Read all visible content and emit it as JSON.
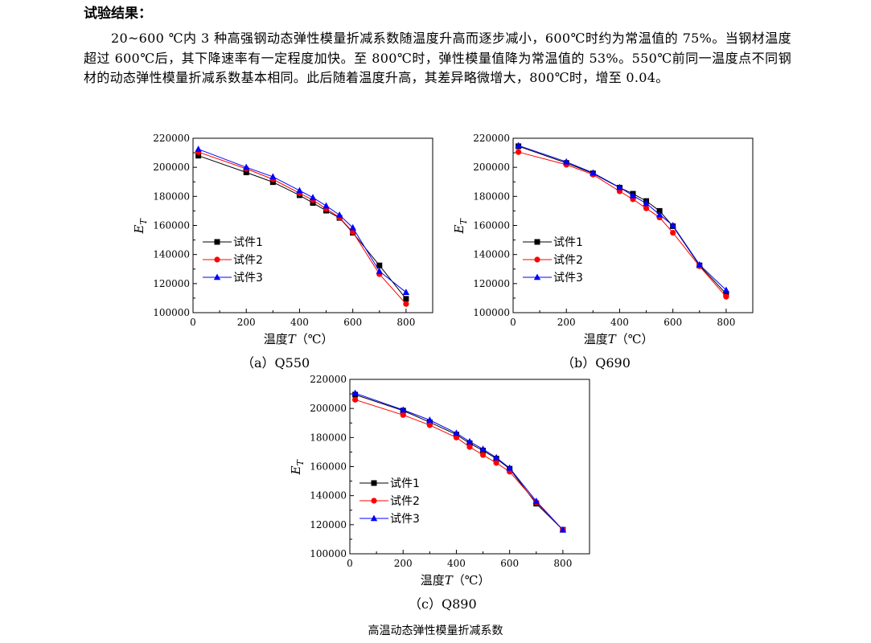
{
  "heading": "试验结果：",
  "paragraph": "20~600 ℃内 3 种高强钢动态弹性模量折减系数随温度升高而逐步减小，600℃时约为常温值的 75%。当钢材温度超过 600℃后，其下降速率有一定程度加快。至 800℃时，弹性模量值降为常温值的 53%。550℃前同一温度点不同钢材的动态弹性模量折减系数基本相同。此后随着温度升高，其差异略微增大，800℃时，增至 0.04。",
  "figure_caption": "高温动态弹性模量折减系数",
  "colors": {
    "s1": "#000000",
    "s2": "#ff0000",
    "s3": "#0000ff"
  },
  "chart_data": [
    {
      "type": "line",
      "caption": "（a）Q550",
      "xlabel_text": "温度",
      "xlabel_var": "T",
      "xlabel_unit": "（℃）",
      "ylabel_main": "E",
      "ylabel_sub": "T",
      "xlim": [
        0,
        900
      ],
      "ylim": [
        100000,
        220000
      ],
      "xticks": [
        0,
        200,
        400,
        600,
        800
      ],
      "yticks": [
        100000,
        120000,
        140000,
        160000,
        180000,
        200000,
        220000
      ],
      "legend": "left-middle",
      "series": [
        {
          "name": "试件1",
          "marker": "square",
          "color": "#000000",
          "x": [
            20,
            200,
            300,
            400,
            450,
            500,
            550,
            600,
            700,
            800
          ],
          "y": [
            208000,
            196500,
            189800,
            180800,
            175500,
            170200,
            165200,
            155000,
            132500,
            109500
          ]
        },
        {
          "name": "试件2",
          "marker": "circle",
          "color": "#ff0000",
          "x": [
            20,
            200,
            300,
            400,
            450,
            500,
            550,
            600,
            700,
            800
          ],
          "y": [
            210500,
            199000,
            191800,
            182200,
            177500,
            171500,
            165500,
            155500,
            126500,
            106000
          ]
        },
        {
          "name": "试件3",
          "marker": "triangle",
          "color": "#0000ff",
          "x": [
            20,
            200,
            300,
            400,
            450,
            500,
            550,
            600,
            700,
            800
          ],
          "y": [
            212500,
            200000,
            193500,
            184000,
            179200,
            173500,
            167200,
            158500,
            128500,
            114000
          ]
        }
      ]
    },
    {
      "type": "line",
      "caption": "（b）Q690",
      "xlabel_text": "温度",
      "xlabel_var": "T",
      "xlabel_unit": "（℃）",
      "ylabel_main": "E",
      "ylabel_sub": "T",
      "xlim": [
        0,
        900
      ],
      "ylim": [
        100000,
        220000
      ],
      "xticks": [
        0,
        200,
        400,
        600,
        800
      ],
      "yticks": [
        100000,
        120000,
        140000,
        160000,
        180000,
        200000,
        220000
      ],
      "legend": "left-middle",
      "series": [
        {
          "name": "试件1",
          "marker": "square",
          "color": "#000000",
          "x": [
            20,
            200,
            300,
            400,
            450,
            500,
            550,
            600,
            700,
            800
          ],
          "y": [
            214500,
            203000,
            195800,
            186000,
            181800,
            176800,
            170000,
            159500,
            132500,
            113000
          ]
        },
        {
          "name": "试件2",
          "marker": "circle",
          "color": "#ff0000",
          "x": [
            20,
            200,
            300,
            400,
            450,
            500,
            550,
            600,
            700,
            800
          ],
          "y": [
            210500,
            201800,
            195000,
            183500,
            178000,
            171800,
            165500,
            155000,
            132000,
            111000
          ]
        },
        {
          "name": "试件3",
          "marker": "triangle",
          "color": "#0000ff",
          "x": [
            20,
            200,
            300,
            400,
            450,
            500,
            550,
            600,
            700,
            800
          ],
          "y": [
            215000,
            203800,
            196200,
            186200,
            180500,
            175200,
            167500,
            160000,
            133000,
            115500
          ]
        }
      ]
    },
    {
      "type": "line",
      "caption": "（c）Q890",
      "xlabel_text": "温度",
      "xlabel_var": "T",
      "xlabel_unit": "（℃）",
      "ylabel_main": "E",
      "ylabel_sub": "T",
      "xlim": [
        0,
        900
      ],
      "ylim": [
        100000,
        220000
      ],
      "xticks": [
        0,
        200,
        400,
        600,
        800
      ],
      "yticks": [
        100000,
        120000,
        140000,
        160000,
        180000,
        200000,
        220000
      ],
      "legend": "left-middle",
      "series": [
        {
          "name": "试件1",
          "marker": "square",
          "color": "#000000",
          "x": [
            20,
            200,
            300,
            400,
            450,
            500,
            550,
            600,
            700,
            800
          ],
          "y": [
            209500,
            198500,
            190500,
            182000,
            176000,
            171000,
            165500,
            158500,
            134500,
            116500
          ]
        },
        {
          "name": "试件2",
          "marker": "circle",
          "color": "#ff0000",
          "x": [
            20,
            200,
            300,
            400,
            450,
            500,
            550,
            600,
            700,
            800
          ],
          "y": [
            206000,
            195500,
            188500,
            180000,
            173500,
            168000,
            162500,
            156500,
            135500,
            116500
          ]
        },
        {
          "name": "试件3",
          "marker": "triangle",
          "color": "#0000ff",
          "x": [
            20,
            200,
            300,
            400,
            450,
            500,
            550,
            600,
            700,
            800
          ],
          "y": [
            210500,
            199000,
            192000,
            183000,
            177200,
            172000,
            166200,
            159000,
            136200,
            116500
          ]
        }
      ]
    }
  ]
}
